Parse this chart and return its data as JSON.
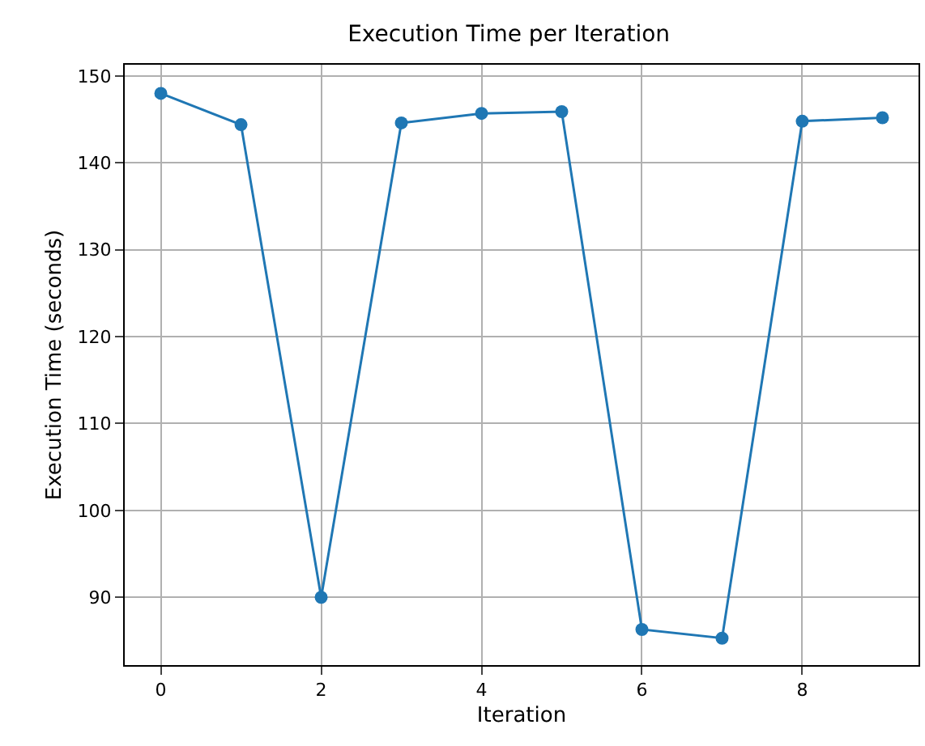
{
  "chart_data": {
    "type": "line",
    "title": "Execution Time per Iteration",
    "xlabel": "Iteration",
    "ylabel": "Execution Time (seconds)",
    "x": [
      0,
      1,
      2,
      3,
      4,
      5,
      6,
      7,
      8,
      9
    ],
    "series": [
      {
        "color": "#1f77b4",
        "values": [
          148,
          144.4,
          90,
          144.6,
          145.7,
          145.9,
          86.3,
          85.3,
          144.8,
          145.2
        ]
      }
    ],
    "xlim": [
      -0.45,
      9.45
    ],
    "xticks": [
      0,
      2,
      4,
      6,
      8
    ],
    "ylim": [
      82.2,
      151.3
    ],
    "yticks": [
      90,
      100,
      110,
      120,
      130,
      140,
      150
    ],
    "grid": true,
    "marker": "circle",
    "line_style": "solid"
  }
}
